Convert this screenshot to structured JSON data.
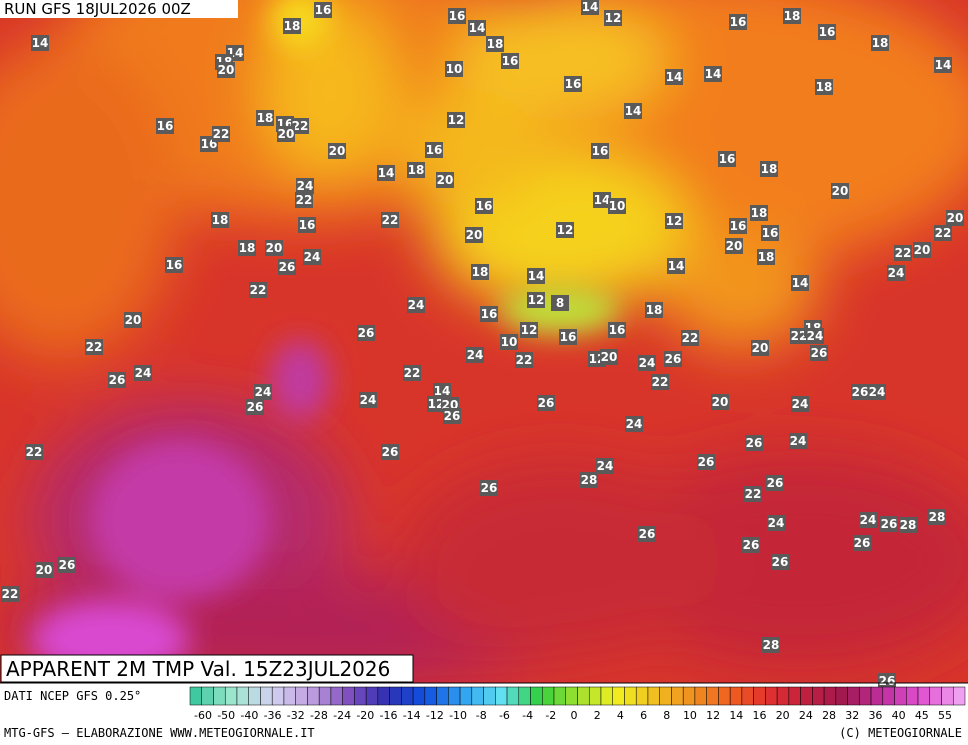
{
  "header": {
    "run": "RUN GFS 18JUL2026 00Z"
  },
  "map_title": "APPARENT 2M TMP Val. 15Z23JUL2026",
  "map_labels": [
    14,
    18,
    16,
    14,
    18,
    20,
    16,
    16,
    22,
    18,
    16,
    22,
    20,
    20,
    24,
    22,
    18,
    16,
    16,
    18,
    20,
    26,
    24,
    22,
    20,
    22,
    26,
    24,
    24,
    26,
    22,
    20,
    26,
    22,
    26,
    24,
    22,
    24,
    26,
    14,
    12,
    20,
    26,
    26,
    16,
    14,
    18,
    16,
    10,
    12,
    16,
    18,
    14,
    20,
    22,
    16,
    20,
    18,
    14,
    12,
    8,
    16,
    12,
    10,
    24,
    22,
    16,
    16,
    14,
    12,
    14,
    16,
    14,
    10,
    12,
    12,
    14,
    14,
    16,
    18,
    18,
    16,
    18,
    14,
    16,
    18,
    20,
    18,
    16,
    16,
    20,
    18,
    14,
    14,
    22,
    20,
    22,
    20,
    24,
    18,
    16,
    12,
    20,
    24,
    26,
    22,
    22,
    20,
    22,
    18,
    24,
    26,
    20,
    24,
    26,
    24,
    24,
    26,
    26,
    24,
    26,
    24,
    28,
    26,
    22,
    24,
    24,
    26,
    28,
    28,
    26,
    26,
    26,
    26,
    28,
    26
  ],
  "footer": {
    "source": "DATI NCEP GFS 0.25°",
    "credit": "MTG-GFS – ELABORAZIONE WWW.METEOGIORNALE.IT",
    "copyright": "(C) METEOGIORNALE"
  },
  "colorbar": {
    "ticks": [
      -60,
      -50,
      -40,
      -36,
      -32,
      -28,
      -24,
      -20,
      -16,
      -14,
      -12,
      -10,
      -8,
      -6,
      -4,
      -2,
      0,
      2,
      4,
      6,
      8,
      10,
      12,
      14,
      16,
      20,
      24,
      28,
      32,
      36,
      40,
      45,
      55
    ]
  }
}
